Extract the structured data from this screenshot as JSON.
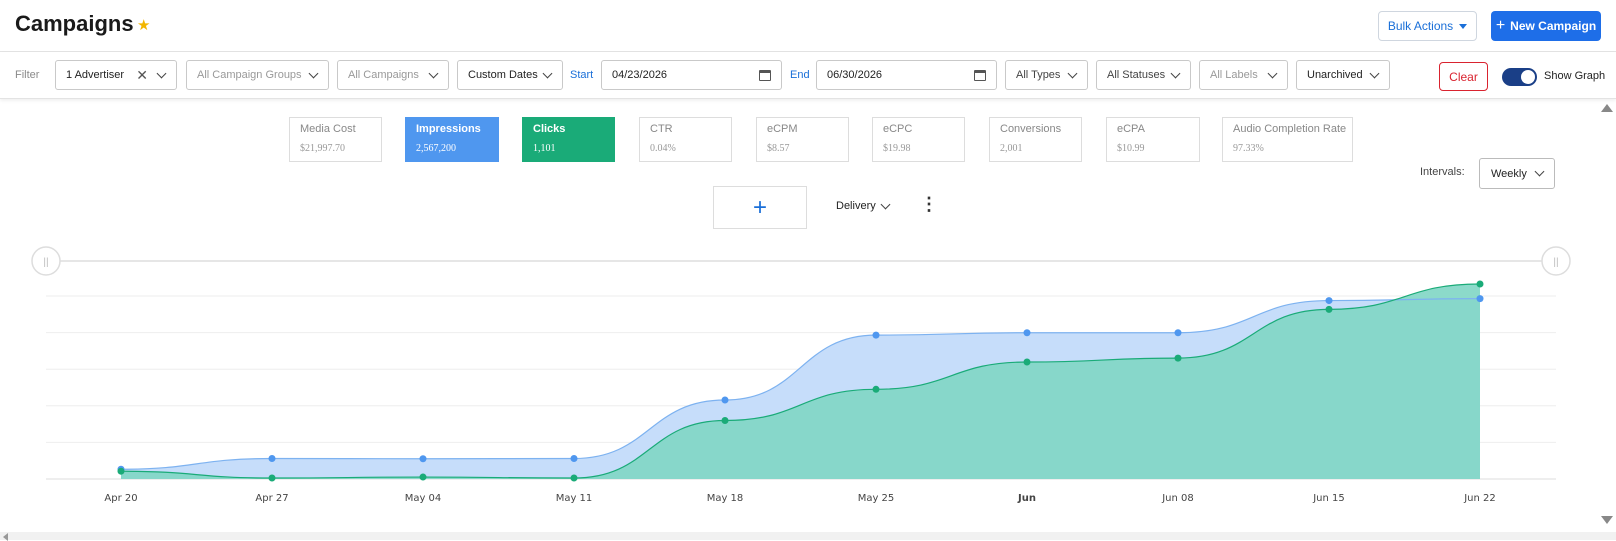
{
  "header": {
    "title": "Campaigns",
    "star_icon": "star-icon",
    "bulk_actions_label": "Bulk Actions",
    "new_campaign_label": "New Campaign"
  },
  "filters": {
    "filter_label": "Filter",
    "advertiser": "1 Advertiser",
    "campaign_groups": "All Campaign Groups",
    "campaigns": "All Campaigns",
    "date_mode": "Custom Dates",
    "start_label": "Start",
    "start_date": "04/23/2026",
    "end_label": "End",
    "end_date": "06/30/2026",
    "types": "All Types",
    "statuses": "All Statuses",
    "labels": "All Labels",
    "archive": "Unarchived",
    "clear_label": "Clear",
    "show_graph_label": "Show Graph",
    "show_graph_on": true
  },
  "metrics": [
    {
      "name": "Media Cost",
      "value": "$21,997.70",
      "active": ""
    },
    {
      "name": "Impressions",
      "value": "2,567,200",
      "active": "imp"
    },
    {
      "name": "Clicks",
      "value": "1,101",
      "active": "clk"
    },
    {
      "name": "CTR",
      "value": "0.04%",
      "active": ""
    },
    {
      "name": "eCPM",
      "value": "$8.57",
      "active": ""
    },
    {
      "name": "eCPC",
      "value": "$19.98",
      "active": ""
    },
    {
      "name": "Conversions",
      "value": "2,001",
      "active": ""
    },
    {
      "name": "eCPA",
      "value": "$10.99",
      "active": ""
    },
    {
      "name": "Audio Completion Rate",
      "value": "97.33%",
      "active": ""
    }
  ],
  "controls": {
    "intervals_label": "Intervals:",
    "interval_value": "Weekly",
    "delivery_label": "Delivery"
  },
  "colors": {
    "impressions": "#4f97ef",
    "clicks": "#1aab78",
    "impressions_fill": "#c3dbfa",
    "clicks_fill": "#7fd6c4",
    "accent": "#1e6ee8",
    "danger": "#d9232f"
  },
  "chart_data": {
    "type": "area",
    "categories": [
      "Apr 20",
      "Apr 27",
      "May 04",
      "May 11",
      "May 18",
      "May 25",
      "Jun",
      "Jun 08",
      "Jun 15",
      "Jun 22"
    ],
    "bold_categories": [
      "Jun"
    ],
    "series": [
      {
        "name": "Impressions",
        "values": [
          0.05,
          0.105,
          0.104,
          0.105,
          0.405,
          0.738,
          0.75,
          0.75,
          0.915,
          0.925
        ]
      },
      {
        "name": "Clicks",
        "values": [
          0.04,
          0.005,
          0.01,
          0.005,
          0.3,
          0.46,
          0.6,
          0.62,
          0.87,
          1.0
        ]
      }
    ],
    "yaxis": "hidden",
    "grid": true,
    "legend": "none",
    "range_handles": true
  }
}
